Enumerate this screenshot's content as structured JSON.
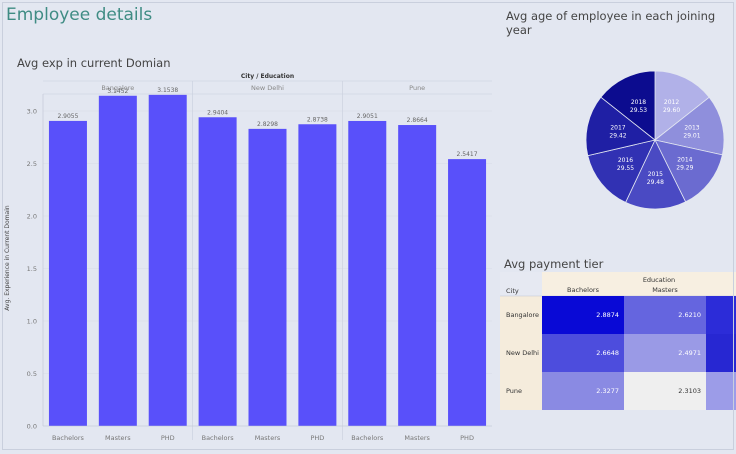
{
  "page": {
    "title": "Employee details",
    "bar_section_title": "Avg exp in current Domian",
    "pie_section_title": "Avg age of employee  in each joining year",
    "tier_section_title": "Avg payment tier"
  },
  "colors": {
    "title": "#3f8c84",
    "bar": "#5950fa",
    "background": "#e3e7f1"
  },
  "chart_data": [
    {
      "type": "bar",
      "title": "Avg exp in current Domian",
      "header": "City / Education",
      "groups": [
        "Bangalore",
        "New Delhi",
        "Pune"
      ],
      "categories": [
        "Bachelors",
        "Masters",
        "PHD"
      ],
      "series": [
        {
          "name": "Bangalore",
          "values": [
            2.9055,
            3.1452,
            3.1538
          ]
        },
        {
          "name": "New Delhi",
          "values": [
            2.9404,
            2.8298,
            2.8738
          ]
        },
        {
          "name": "Pune",
          "values": [
            2.9051,
            2.8664,
            2.5417
          ]
        }
      ],
      "value_labels": [
        [
          "2.9055",
          "3.1452",
          "3.1538"
        ],
        [
          "2.9404",
          "2.8298",
          "2.8738"
        ],
        [
          "2.9051",
          "2.8664",
          "2.5417"
        ]
      ],
      "ylabel": "Avg. Experience in Current Domain",
      "ylim": [
        0,
        3.2
      ],
      "yticks": [
        "0.0",
        "0.5",
        "1.0",
        "1.5",
        "2.0",
        "2.5",
        "3.0"
      ],
      "grid": true
    },
    {
      "type": "pie",
      "title": "Avg age of employee  in each joining year",
      "slices": [
        {
          "label": "2012",
          "value": 29.6,
          "value_label": "29.60",
          "color": "#b1b1e8"
        },
        {
          "label": "2013",
          "value": 29.01,
          "value_label": "29.01",
          "color": "#8f8fdc"
        },
        {
          "label": "2014",
          "value": 29.29,
          "value_label": "29.29",
          "color": "#6b6bd0"
        },
        {
          "label": "2015",
          "value": 29.48,
          "value_label": "29.48",
          "color": "#4a4ac3"
        },
        {
          "label": "2016",
          "value": 29.55,
          "value_label": "29.55",
          "color": "#3131b3"
        },
        {
          "label": "2017",
          "value": 29.42,
          "value_label": "29.42",
          "color": "#1f1fa4"
        },
        {
          "label": "2018",
          "value": 29.53,
          "value_label": "29.53",
          "color": "#0c0c8f"
        }
      ]
    },
    {
      "type": "heatmap",
      "title": "Avg payment tier",
      "column_header": "Education",
      "row_header": "City",
      "columns": [
        "Bachelors",
        "Masters",
        ""
      ],
      "rows": [
        "Bangalore",
        "New Delhi",
        "Pune"
      ],
      "values": [
        [
          2.8874,
          2.621,
          null
        ],
        [
          2.6648,
          2.4971,
          null
        ],
        [
          2.3277,
          2.3103,
          null
        ]
      ],
      "value_labels": [
        [
          "2.8874",
          "2.6210",
          ""
        ],
        [
          "2.6648",
          "2.4971",
          ""
        ],
        [
          "2.3277",
          "2.3103",
          ""
        ]
      ],
      "colors": [
        [
          "#0909d6",
          "#6565df",
          "#2c2cd8"
        ],
        [
          "#4d4ddd",
          "#9a9ae6",
          "#2727d2"
        ],
        [
          "#8a8ae3",
          "#efefef",
          "#9c9ce8"
        ]
      ],
      "row_fill": "#f5ecdc",
      "header_fill": "#f7efe1"
    }
  ]
}
